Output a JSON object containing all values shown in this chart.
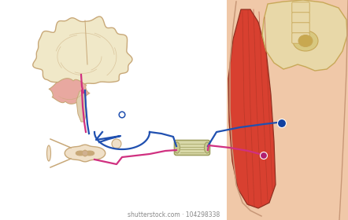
{
  "bg_color": "#ffffff",
  "brain_color": "#f0e8c8",
  "brain_outline": "#c8a878",
  "cerebellum_color": "#e8a8a0",
  "brainstem_color": "#e0d0b0",
  "spinal_color": "#f0e0c8",
  "bone_color": "#e8d8a8",
  "bone_outline": "#c8a858",
  "muscle_color": "#d84030",
  "skin_color": "#f0c8a8",
  "skin_outline": "#c89878",
  "device_color": "#d8d8a8",
  "device_outline": "#a0a060",
  "nerve_blue": "#2050b0",
  "nerve_pink": "#d03080",
  "dot_blue": "#1040a0",
  "dot_pink": "#b02070",
  "watermark_color": "#888888",
  "watermark_text": "shutterstock.com · 104298338",
  "figsize": [
    4.42,
    2.8
  ],
  "dpi": 100
}
